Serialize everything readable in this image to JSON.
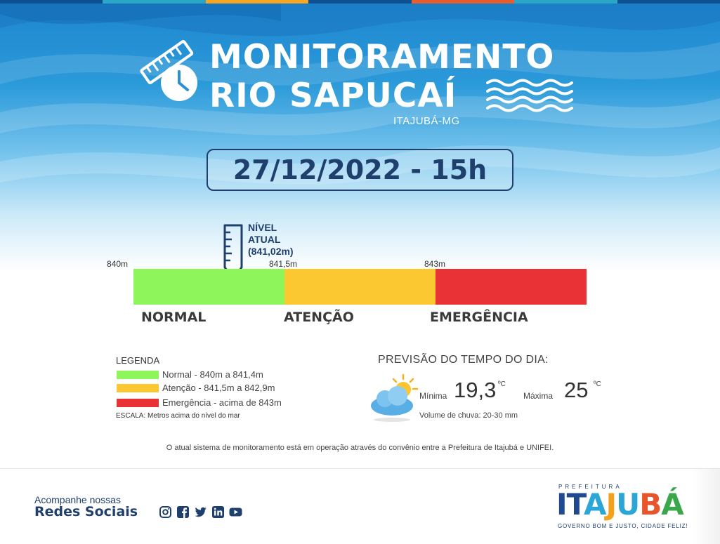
{
  "header": {
    "title_line1": "MONITORAMENTO",
    "title_line2": "RIO SAPUCAÍ",
    "city": "ITAJUBÁ-MG",
    "datetime": "27/12/2022 - 15h"
  },
  "level": {
    "label_line1": "NÍVEL",
    "label_line2": "ATUAL",
    "label_line3": "(841,02m)",
    "value_m": 841.02
  },
  "scale": {
    "min_label": "840m",
    "mid_label": "841,5m",
    "high_label": "843m",
    "segments": [
      {
        "status": "NORMAL",
        "color": "#8ef55a"
      },
      {
        "status": "ATENÇÃO",
        "color": "#fcc832"
      },
      {
        "status": "EMERGÊNCIA",
        "color": "#e83236"
      }
    ]
  },
  "legend": {
    "title": "LEGENDA",
    "items": [
      {
        "text": "Normal - 840m a 841,4m",
        "color": "#8ef55a"
      },
      {
        "text": "Atenção - 841,5m a 842,9m",
        "color": "#fcc832"
      },
      {
        "text": "Emergência - acima de 843m",
        "color": "#e83236"
      }
    ],
    "scale_note": "ESCALA: Metros acima do nível do mar"
  },
  "forecast": {
    "title": "PREVISÃO DO TEMPO DO DIA:",
    "min_label": "Mínima",
    "min_value": "19,3",
    "max_label": "Máxima",
    "max_value": "25",
    "unit": "ºC",
    "rain": "Volume de chuva: 20-30 mm",
    "icon": "partly-cloudy-icon"
  },
  "footer_note": "O atual sistema de monitoramento está em operação através do convênio entre a Prefeitura de Itajubá e UNIFEI.",
  "social": {
    "follow": "Acompanhe nossas",
    "title": "Redes Sociais",
    "icons": [
      "instagram-icon",
      "facebook-icon",
      "twitter-icon",
      "linkedin-icon",
      "youtube-icon"
    ]
  },
  "logo": {
    "top": "PREFEITURA",
    "main": "ITAJUBÁ",
    "sub": "GOVERNO BOM E JUSTO, CIDADE FELIZ!"
  },
  "colors": {
    "navy": "#1f3f6d",
    "top_stripe": [
      "#0d4f8f",
      "#2aa7c7",
      "#f6a623",
      "#0d4f8f",
      "#e85d2b",
      "#2aa7c7",
      "#0d4f8f"
    ]
  }
}
